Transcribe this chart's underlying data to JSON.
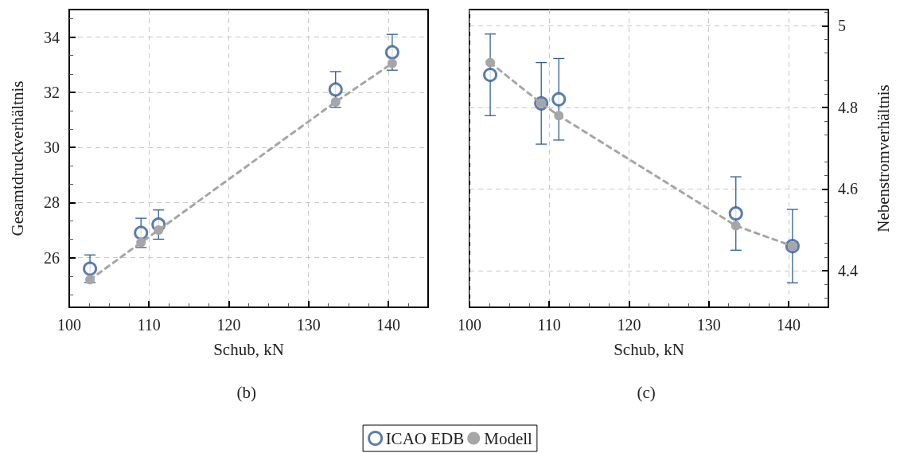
{
  "chart_data": [
    {
      "type": "scatter",
      "xlabel": "Schub, kN",
      "ylabel": "Gesamtdruckverhältnis",
      "annotations": [
        "(b)"
      ],
      "xlim": [
        100,
        145
      ],
      "xticks": [
        100,
        110,
        120,
        130,
        140
      ],
      "ylim": [
        24.2,
        35
      ],
      "yticks": [
        26,
        28,
        30,
        32,
        34
      ],
      "grid": true,
      "legend": "bottom",
      "series": [
        {
          "name": "ICAO EDB",
          "marker": "circle",
          "color": "#2f5d9c",
          "x": [
            102.6,
            109,
            111.2,
            133.4,
            140.5
          ],
          "values": [
            25.6,
            26.9,
            27.2,
            32.1,
            33.45
          ],
          "errors": [
            0.5,
            0.53,
            0.53,
            0.65,
            0.65
          ]
        },
        {
          "name": "Modell",
          "type": "line",
          "marker": "circle",
          "line_style": "dashed",
          "color": "#a6a6a6",
          "x": [
            102.6,
            109,
            111.2,
            133.4,
            140.5
          ],
          "values": [
            25.2,
            26.55,
            27.0,
            31.65,
            33.05
          ]
        }
      ]
    },
    {
      "type": "scatter",
      "xlabel": "Schub, kN",
      "y2label": "Nebenstromverhältnis",
      "annotations": [
        "(c)"
      ],
      "xlim": [
        100,
        145
      ],
      "xticks": [
        100,
        110,
        120,
        130,
        140
      ],
      "y2lim": [
        4.31,
        5.04
      ],
      "y2ticks": [
        4.4,
        4.6,
        4.8,
        5
      ],
      "grid": true,
      "series": [
        {
          "axis": "y2",
          "marker": "circle",
          "color": "#2f5d9c",
          "x": [
            102.6,
            109,
            111.2,
            133.4,
            140.5
          ],
          "values": [
            4.88,
            4.81,
            4.82,
            4.54,
            4.46
          ],
          "errors": [
            0.1,
            0.1,
            0.1,
            0.09,
            0.09
          ]
        },
        {
          "type": "line",
          "axis": "y2",
          "marker": "circle",
          "line_style": "dashed",
          "color": "#a6a6a6",
          "x": [
            102.6,
            109,
            111.2,
            133.4,
            140.5
          ],
          "values": [
            4.91,
            4.81,
            4.78,
            4.51,
            4.46
          ]
        }
      ]
    }
  ]
}
